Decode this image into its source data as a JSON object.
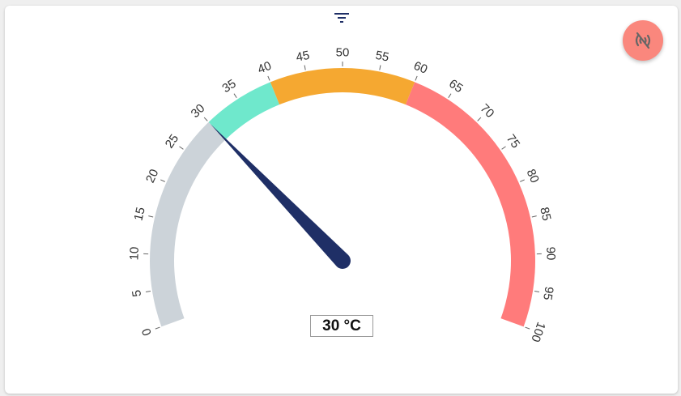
{
  "gauge": {
    "min": 0,
    "max": 100,
    "value": 30,
    "unit": "°C",
    "display_value": "30 °C",
    "tick_labels": [
      "0",
      "5",
      "10",
      "15",
      "20",
      "25",
      "30",
      "35",
      "40",
      "45",
      "50",
      "55",
      "60",
      "65",
      "70",
      "75",
      "80",
      "85",
      "90",
      "95",
      "100"
    ],
    "bands": [
      {
        "from": 0,
        "to": 30,
        "color": "#ccd3d9"
      },
      {
        "from": 30,
        "to": 40,
        "color": "#6fe8cc"
      },
      {
        "from": 40,
        "to": 60,
        "color": "#f5a831"
      },
      {
        "from": 60,
        "to": 100,
        "color": "#ff7b7b"
      }
    ],
    "needle_color": "#1f2f66"
  },
  "toolbar": {
    "filter_icon": "filter-icon",
    "connection_button_icon": "signal-off-icon",
    "connection_button_color": "#fa877d"
  }
}
